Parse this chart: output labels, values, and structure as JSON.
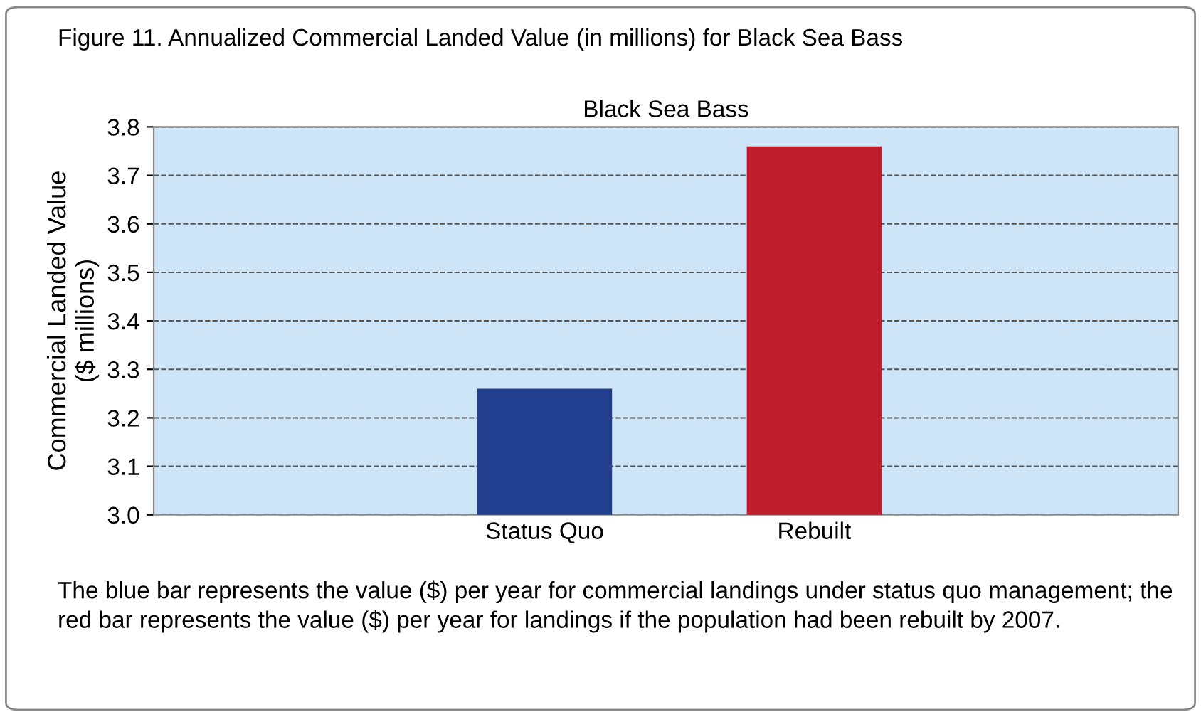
{
  "chart_data": {
    "type": "bar",
    "title": "Figure 11. Annualized Commercial Landed Value (in millions) for Black Sea Bass",
    "subtitle": "Black Sea Bass",
    "ylabel": "Commercial Landed Value\n($ millions)",
    "categories": [
      "Status Quo",
      "Rebuilt"
    ],
    "values": [
      3.26,
      3.76
    ],
    "colors": [
      "#233f8f",
      "#c01e2f"
    ],
    "ylim": [
      3.0,
      3.8
    ],
    "yticks": [
      {
        "value": 3.0,
        "label": "3.0"
      },
      3.1,
      3.2,
      3.3,
      3.4,
      3.5,
      3.6,
      3.7,
      3.8
    ],
    "grid": "y",
    "annotations": [
      "The blue bar represents the value ($) per year for commercial landings under status quo management; the red bar represents the value ($) per year for landings if the population had been rebuilt by 2007."
    ]
  }
}
